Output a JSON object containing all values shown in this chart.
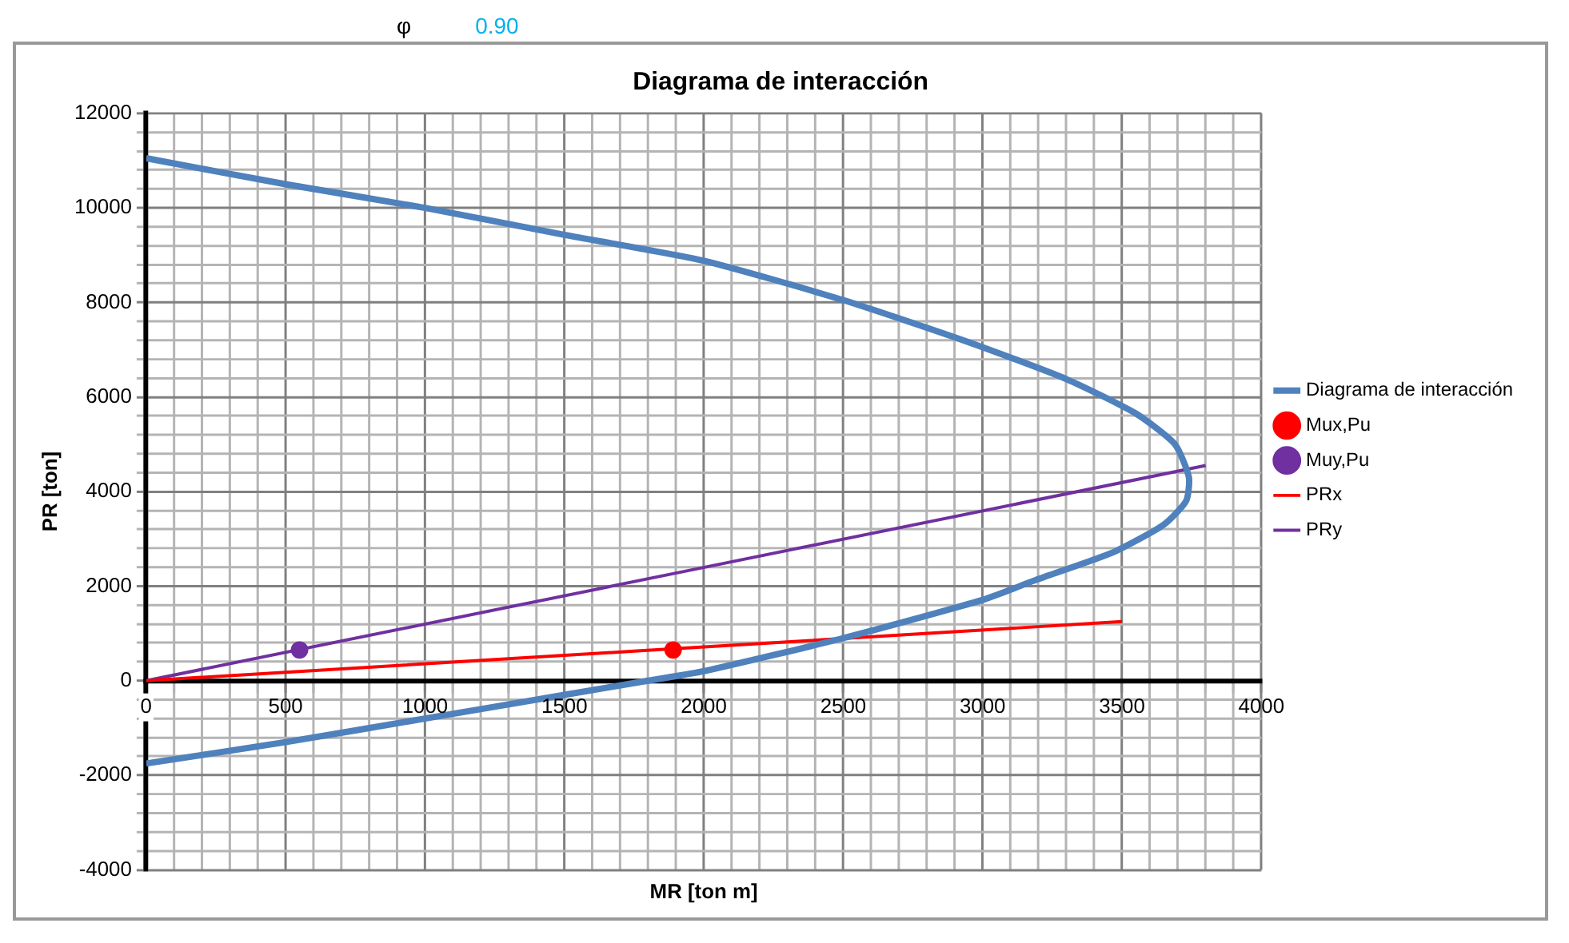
{
  "chart_data": {
    "type": "line",
    "title": "Diagrama de interacción",
    "xlabel": "MR [ton m]",
    "ylabel": "PR [ton]",
    "annotations": [
      "φ",
      "0.90"
    ],
    "xlim": [
      0,
      4000
    ],
    "ylim": [
      -4000,
      12000
    ],
    "xticks": [
      0,
      {
        "value": 100,
        "label": null
      },
      {
        "value": 200,
        "label": null
      },
      {
        "value": 300,
        "label": null
      },
      {
        "value": 400,
        "label": null
      },
      500,
      {
        "value": 600,
        "label": null
      },
      {
        "value": 700,
        "label": null
      },
      {
        "value": 800,
        "label": null
      },
      {
        "value": 900,
        "label": null
      },
      1000,
      {
        "value": 1100,
        "label": null
      },
      {
        "value": 1200,
        "label": null
      },
      {
        "value": 1300,
        "label": null
      },
      {
        "value": 1400,
        "label": null
      },
      1500,
      {
        "value": 1600,
        "label": null
      },
      {
        "value": 1700,
        "label": null
      },
      {
        "value": 1800,
        "label": null
      },
      {
        "value": 1900,
        "label": null
      },
      2000,
      {
        "value": 2100,
        "label": null
      },
      {
        "value": 2200,
        "label": null
      },
      {
        "value": 2300,
        "label": null
      },
      {
        "value": 2400,
        "label": null
      },
      2500,
      {
        "value": 2600,
        "label": null
      },
      {
        "value": 2700,
        "label": null
      },
      {
        "value": 2800,
        "label": null
      },
      {
        "value": 2900,
        "label": null
      },
      3000,
      {
        "value": 3100,
        "label": null
      },
      {
        "value": 3200,
        "label": null
      },
      {
        "value": 3300,
        "label": null
      },
      {
        "value": 3400,
        "label": null
      },
      3500,
      {
        "value": 3600,
        "label": null
      },
      {
        "value": 3700,
        "label": null
      },
      {
        "value": 3800,
        "label": null
      },
      {
        "value": 3900,
        "label": null
      },
      4000
    ],
    "yticks": [
      -4000,
      {
        "value": -3600,
        "label": null
      },
      {
        "value": -3200,
        "label": null
      },
      {
        "value": -2800,
        "label": null
      },
      {
        "value": -2400,
        "label": null
      },
      -2000,
      {
        "value": -1600,
        "label": null
      },
      {
        "value": -1200,
        "label": null
      },
      {
        "value": -800,
        "label": null
      },
      {
        "value": -400,
        "label": null
      },
      0,
      {
        "value": 400,
        "label": null
      },
      {
        "value": 800,
        "label": null
      },
      {
        "value": 1200,
        "label": null
      },
      {
        "value": 1600,
        "label": null
      },
      2000,
      {
        "value": 2400,
        "label": null
      },
      {
        "value": 2800,
        "label": null
      },
      {
        "value": 3200,
        "label": null
      },
      {
        "value": 3600,
        "label": null
      },
      4000,
      {
        "value": 4400,
        "label": null
      },
      {
        "value": 4800,
        "label": null
      },
      {
        "value": 5200,
        "label": null
      },
      {
        "value": 5600,
        "label": null
      },
      6000,
      {
        "value": 6400,
        "label": null
      },
      {
        "value": 6800,
        "label": null
      },
      {
        "value": 7200,
        "label": null
      },
      {
        "value": 7600,
        "label": null
      },
      8000,
      {
        "value": 8400,
        "label": null
      },
      {
        "value": 8800,
        "label": null
      },
      {
        "value": 9200,
        "label": null
      },
      {
        "value": 9600,
        "label": null
      },
      10000,
      {
        "value": 10400,
        "label": null
      },
      {
        "value": 10800,
        "label": null
      },
      {
        "value": 11200,
        "label": null
      },
      {
        "value": 11600,
        "label": null
      },
      12000
    ],
    "grid": true,
    "legend": "right",
    "series": [
      {
        "name": "Diagrama de interacción",
        "type": "line",
        "color": "#4f81bd",
        "x": [
          0,
          500,
          1000,
          1500,
          2000,
          2500,
          2940,
          3300,
          3550,
          3690,
          3740,
          3730,
          3650,
          3470,
          3200,
          3000,
          2500,
          2000,
          1800,
          1500,
          1000,
          500,
          0
        ],
        "values": [
          11050,
          10500,
          10000,
          9430,
          8880,
          8050,
          7180,
          6380,
          5650,
          5000,
          4300,
          3800,
          3300,
          2720,
          2150,
          1710,
          900,
          200,
          0,
          -300,
          -800,
          -1300,
          -1750
        ]
      },
      {
        "name": "Mux,Pu",
        "type": "scatter",
        "color": "#ff0000",
        "x": [
          1890
        ],
        "values": [
          650
        ]
      },
      {
        "name": "Muy,Pu",
        "type": "scatter",
        "color": "#7030a0",
        "x": [
          550
        ],
        "values": [
          650
        ]
      },
      {
        "name": "PRx",
        "type": "line",
        "color": "#ff0000",
        "x": [
          0,
          3500
        ],
        "values": [
          0,
          1250
        ]
      },
      {
        "name": "PRy",
        "type": "line",
        "color": "#7030a0",
        "x": [
          0,
          3800
        ],
        "values": [
          0,
          4550
        ]
      }
    ]
  }
}
